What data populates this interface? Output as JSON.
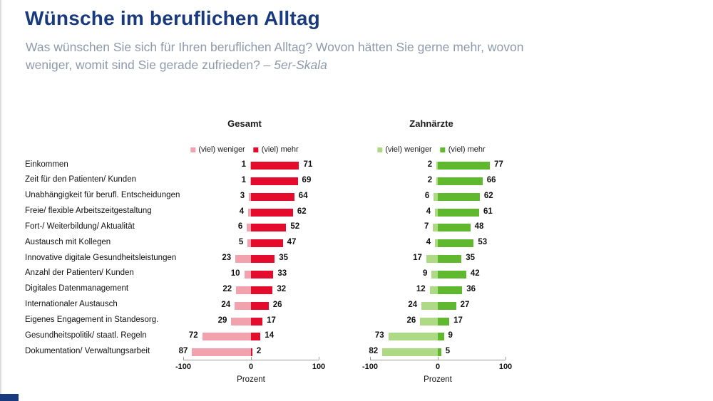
{
  "page": {
    "title": "Wünsche im beruflichen Alltag",
    "subtitle_line1": "Was wünschen Sie sich für Ihren beruflichen Alltag? Wovon hätten Sie gerne mehr, wovon",
    "subtitle_line2": "weniger, womit sind Sie gerade zufrieden? – ",
    "subtitle_italic": "5er-Skala"
  },
  "colors": {
    "title": "#1a3a7e",
    "subtitle": "#8e9aab",
    "accent_block": "#1a3a7e",
    "axis": "#9a9a9a"
  },
  "chart_data": {
    "type": "bar",
    "subtype": "diverging-horizontal-stacked",
    "xlabel": "Prozent",
    "xlim": [
      -100,
      100
    ],
    "grid": false,
    "legend_position": "top",
    "categories": [
      "Einkommen",
      "Zeit für den Patienten/ Kunden",
      "Unabhängigkeit für berufl. Entscheidungen",
      "Freie/ flexible Arbeitszeitgestaltung",
      "Fort-/ Weiterbildung/ Aktualität",
      "Austausch mit Kollegen",
      "Innovative digitale Gesundheitsleistungen",
      "Anzahl der Patienten/ Kunden",
      "Digitales Datenmanagement",
      "Internationaler Austausch",
      "Eigenes Engagement in Standesorg.",
      "Gesundheitspolitik/ staatl. Regeln",
      "Dokumentation/ Verwaltungsarbeit"
    ],
    "charts": [
      {
        "title": "Gesamt",
        "legend": [
          {
            "label": "(viel) weniger",
            "color": "#f1a2ad"
          },
          {
            "label": "(viel) mehr",
            "color": "#e40b2c"
          }
        ],
        "series": [
          {
            "name": "(viel) weniger",
            "values": [
              1,
              1,
              3,
              4,
              6,
              5,
              23,
              10,
              22,
              24,
              29,
              72,
              87
            ]
          },
          {
            "name": "(viel) mehr",
            "values": [
              71,
              69,
              64,
              62,
              52,
              47,
              35,
              33,
              32,
              26,
              17,
              14,
              2
            ]
          }
        ],
        "ticks": [
          -100,
          0,
          100
        ],
        "xlabel": "Prozent"
      },
      {
        "title": "Zahnärzte",
        "legend": [
          {
            "label": "(viel) weniger",
            "color": "#aeda85"
          },
          {
            "label": "(viel) mehr",
            "color": "#5fb82e"
          }
        ],
        "series": [
          {
            "name": "(viel) weniger",
            "values": [
              2,
              2,
              6,
              4,
              7,
              4,
              17,
              9,
              12,
              24,
              26,
              73,
              82
            ]
          },
          {
            "name": "(viel) mehr",
            "values": [
              77,
              66,
              62,
              61,
              48,
              53,
              35,
              42,
              36,
              27,
              17,
              9,
              5
            ]
          }
        ],
        "ticks": [
          -100,
          0,
          100
        ],
        "xlabel": "Prozent"
      }
    ]
  }
}
